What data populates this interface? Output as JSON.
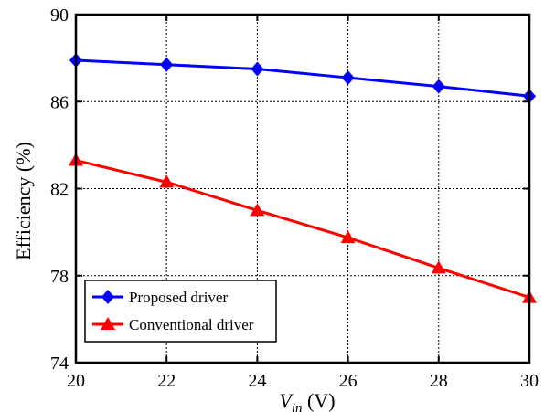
{
  "chart_data": {
    "type": "line",
    "title": "",
    "xlabel": {
      "base": "V",
      "sub": "in",
      "unit": " (V)"
    },
    "ylabel": "Efficiency (%)",
    "xlim": [
      20,
      30
    ],
    "ylim": [
      74,
      90
    ],
    "xticks": [
      20,
      22,
      24,
      26,
      28,
      30
    ],
    "yticks": [
      74,
      78,
      82,
      86,
      90
    ],
    "grid": true,
    "legend_position": "bottom-left",
    "x": [
      20,
      22,
      24,
      26,
      28,
      30
    ],
    "series": [
      {
        "name": "Proposed driver",
        "marker": "diamond",
        "color": "#0000ff",
        "values": [
          87.9,
          87.7,
          87.5,
          87.1,
          86.7,
          86.25
        ]
      },
      {
        "name": "Conventional driver",
        "marker": "triangle",
        "color": "#ff0000",
        "values": [
          83.3,
          82.3,
          81.0,
          79.75,
          78.35,
          77.0
        ]
      }
    ]
  }
}
